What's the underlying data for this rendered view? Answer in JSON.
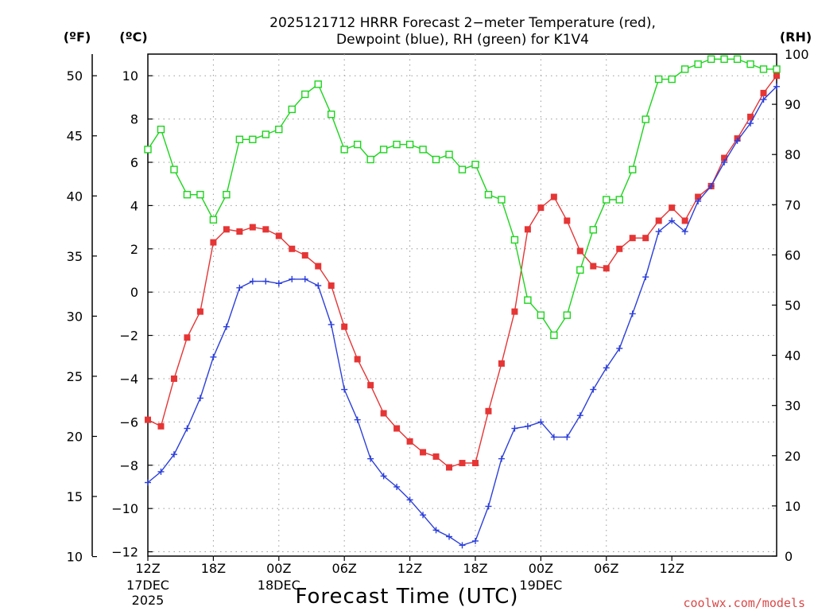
{
  "chart_data": {
    "type": "line",
    "title_line1": "2025121712 HRRR Forecast 2−meter Temperature (red),",
    "title_line2": "Dewpoint (blue), RH (green) for K1V4",
    "xlabel": "Forecast Time (UTC)",
    "credit": "coolwx.com/models",
    "left_unit_f": "(ºF)",
    "left_unit_c": "(ºC)",
    "right_unit": "(RH)",
    "x_hours_range": [
      0,
      48
    ],
    "celsius_axis": {
      "range": [
        -12.2,
        11
      ],
      "ticks": [
        10,
        8,
        6,
        4,
        2,
        0,
        -2,
        -4,
        -6,
        -8,
        -10,
        -12
      ]
    },
    "fahrenheit_axis": {
      "ticks": [
        50,
        45,
        40,
        35,
        30,
        25,
        20,
        15,
        10
      ]
    },
    "rh_axis": {
      "range": [
        0,
        100
      ],
      "ticks": [
        100,
        90,
        80,
        70,
        60,
        50,
        40,
        30,
        20,
        10,
        0
      ]
    },
    "x_ticks": [
      {
        "hour": 0,
        "label": "12Z",
        "sub1": "17DEC",
        "sub2": "2025"
      },
      {
        "hour": 5,
        "label": "18Z",
        "sub1": "",
        "sub2": ""
      },
      {
        "hour": 10,
        "label": "00Z",
        "sub1": "18DEC",
        "sub2": ""
      },
      {
        "hour": 15,
        "label": "06Z",
        "sub1": "",
        "sub2": ""
      },
      {
        "hour": 20,
        "label": "12Z",
        "sub1": "",
        "sub2": ""
      },
      {
        "hour": 25,
        "label": "18Z",
        "sub1": "",
        "sub2": ""
      },
      {
        "hour": 30,
        "label": "00Z",
        "sub1": "19DEC",
        "sub2": ""
      },
      {
        "hour": 35,
        "label": "06Z",
        "sub1": "",
        "sub2": ""
      },
      {
        "hour": 40,
        "label": "12Z",
        "sub1": "",
        "sub2": ""
      }
    ],
    "series": [
      {
        "name": "Temperature",
        "unit": "C",
        "color": "#e63535",
        "marker": "filled-square",
        "values": [
          -5.9,
          -6.2,
          -4.0,
          -2.1,
          -0.9,
          2.3,
          2.9,
          2.8,
          3.0,
          2.9,
          2.6,
          2.0,
          1.7,
          1.2,
          0.3,
          -1.6,
          -3.1,
          -4.3,
          -5.6,
          -6.3,
          -6.9,
          -7.4,
          -7.6,
          -8.1,
          -7.9,
          -7.9,
          -5.5,
          -3.3,
          -0.9,
          2.9,
          3.9,
          4.4,
          3.3,
          1.9,
          1.2,
          1.1,
          2.0,
          2.5,
          2.5,
          3.3,
          3.9,
          3.3,
          4.4,
          4.9,
          6.2,
          7.1,
          8.1,
          9.2,
          10.0
        ]
      },
      {
        "name": "Dewpoint",
        "unit": "C",
        "color": "#2c3fd9",
        "marker": "plus",
        "values": [
          -8.8,
          -8.3,
          -7.5,
          -6.3,
          -4.9,
          -3.0,
          -1.6,
          0.2,
          0.5,
          0.5,
          0.4,
          0.6,
          0.6,
          0.3,
          -1.5,
          -4.5,
          -5.9,
          -7.7,
          -8.5,
          -9.0,
          -9.6,
          -10.3,
          -11.0,
          -11.3,
          -11.7,
          -11.5,
          -9.9,
          -7.7,
          -6.3,
          -6.2,
          -6.0,
          -6.7,
          -6.7,
          -5.7,
          -4.5,
          -3.5,
          -2.6,
          -1.0,
          0.7,
          2.8,
          3.3,
          2.8,
          4.2,
          4.9,
          6.0,
          7.0,
          7.8,
          8.9,
          9.5
        ]
      },
      {
        "name": "RH",
        "unit": "%",
        "color": "#1ed41e",
        "marker": "open-square",
        "values": [
          81,
          85,
          77,
          72,
          72,
          67,
          72,
          83,
          83,
          84,
          85,
          89,
          92,
          94,
          88,
          81,
          82,
          79,
          81,
          82,
          82,
          81,
          79,
          80,
          77,
          78,
          72,
          71,
          63,
          51,
          48,
          44,
          48,
          57,
          65,
          71,
          71,
          77,
          87,
          95,
          95,
          97,
          98,
          99,
          99,
          99,
          98,
          97,
          97
        ]
      }
    ]
  }
}
